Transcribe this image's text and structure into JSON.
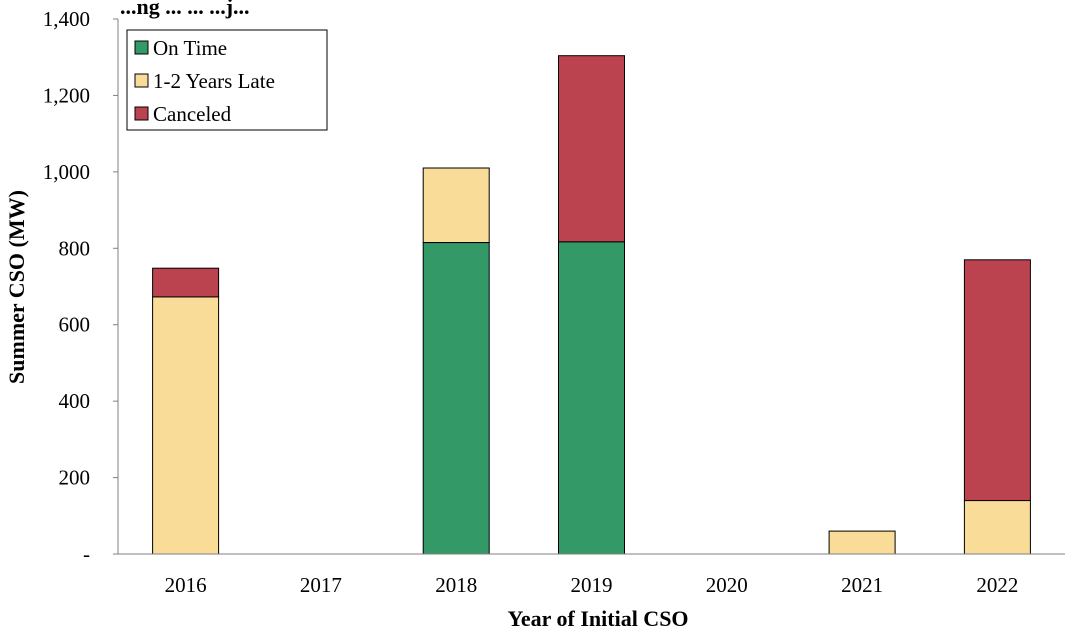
{
  "chart_data": {
    "type": "bar",
    "stacked": true,
    "title": "...ng ... ... ...j...",
    "xlabel": "Year of Initial CSO",
    "ylabel": "Summer CSO (MW)",
    "ylim": [
      0,
      1400
    ],
    "yticks": [
      0,
      200,
      400,
      600,
      800,
      1000,
      1200,
      1400
    ],
    "ytick_labels": [
      "-",
      "200",
      "400",
      "600",
      "800",
      "1,000",
      "1,200",
      "1,400"
    ],
    "categories": [
      "2016",
      "2017",
      "2018",
      "2019",
      "2020",
      "2021",
      "2022"
    ],
    "series": [
      {
        "name": "On Time",
        "color": "#339966",
        "values": [
          0,
          0,
          815,
          817,
          0,
          0,
          0
        ]
      },
      {
        "name": "1-2 Years Late",
        "color": "#F8DC98",
        "values": [
          673,
          0,
          195,
          0,
          0,
          60,
          140
        ]
      },
      {
        "name": "Canceled",
        "color": "#BB4350",
        "values": [
          75,
          0,
          0,
          487,
          0,
          0,
          630
        ]
      }
    ],
    "legend_position": "top-left",
    "grid": false
  }
}
